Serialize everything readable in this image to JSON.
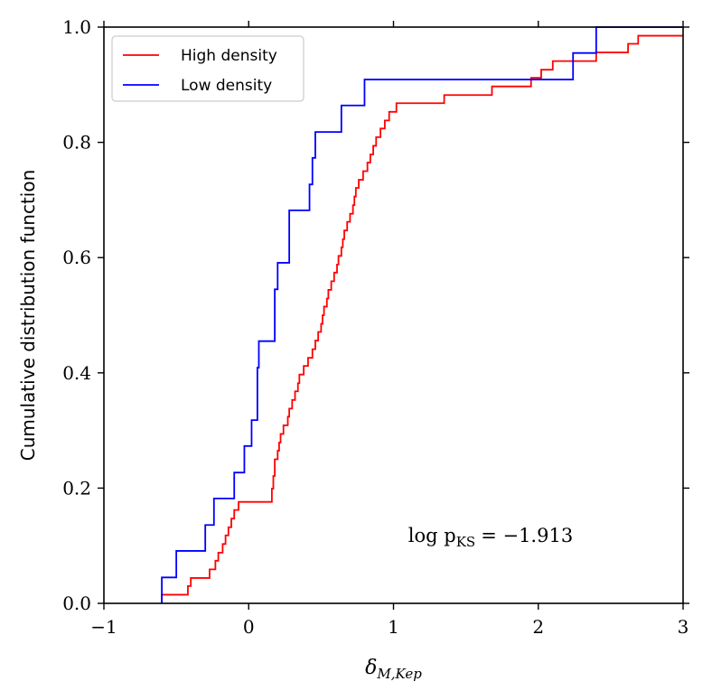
{
  "chart_data": {
    "type": "line",
    "subtype": "step-cdf",
    "xlabel": "δ",
    "xlabel_subscript": "M,Kep",
    "ylabel": "Cumulative distribution function",
    "xlim": [
      -1,
      3
    ],
    "ylim": [
      0,
      1
    ],
    "xticks": [
      -1,
      0,
      1,
      2,
      3
    ],
    "xtick_labels": [
      "−1",
      "0",
      "1",
      "2",
      "3"
    ],
    "yticks": [
      0.0,
      0.2,
      0.4,
      0.6,
      0.8,
      1.0
    ],
    "ytick_labels": [
      "0.0",
      "0.2",
      "0.4",
      "0.6",
      "0.8",
      "1.0"
    ],
    "legend_position": "top-left",
    "annotation": {
      "text": "log p",
      "subscript": "KS",
      "value": "= −1.913"
    },
    "series": [
      {
        "name": "High density",
        "color": "#ff0000",
        "x": [
          -0.6,
          -0.42,
          -0.4,
          -0.27,
          -0.23,
          -0.21,
          -0.18,
          -0.16,
          -0.14,
          -0.12,
          -0.1,
          -0.07,
          -0.05,
          -0.03,
          -0.01,
          0.02,
          0.06,
          0.09,
          0.1,
          0.12,
          0.14,
          0.16,
          0.17,
          0.18,
          0.2,
          0.21,
          0.22,
          0.24,
          0.27,
          0.28,
          0.3,
          0.32,
          0.34,
          0.35,
          0.38,
          0.41,
          0.44,
          0.46,
          0.48,
          0.5,
          0.51,
          0.52,
          0.54,
          0.55,
          0.57,
          0.59,
          0.61,
          0.62,
          0.64,
          0.65,
          0.66,
          0.68,
          0.7,
          0.72,
          0.73,
          0.74,
          0.76,
          0.79,
          0.82,
          0.84,
          0.86,
          0.88,
          0.91,
          0.94,
          0.97,
          1.02,
          1.06,
          1.09,
          1.12,
          1.16,
          1.2,
          1.25,
          1.35,
          1.45,
          1.55,
          1.6,
          1.68,
          1.82,
          1.95,
          2.02,
          2.05,
          2.1,
          2.24,
          2.4,
          2.47,
          2.53,
          2.56,
          2.62,
          2.69,
          2.72,
          2.74,
          2.77,
          2.8
        ],
        "y": [
          0.015,
          0.03,
          0.044,
          0.059,
          0.074,
          0.088,
          0.103,
          0.118,
          0.132,
          0.147,
          0.162,
          0.176,
          0.176,
          0.176,
          0.176,
          0.176,
          0.176,
          0.176,
          0.176,
          0.176,
          0.176,
          0.199,
          0.221,
          0.25,
          0.265,
          0.279,
          0.294,
          0.309,
          0.324,
          0.338,
          0.353,
          0.368,
          0.382,
          0.397,
          0.412,
          0.426,
          0.441,
          0.456,
          0.471,
          0.485,
          0.5,
          0.515,
          0.529,
          0.544,
          0.559,
          0.574,
          0.588,
          0.603,
          0.618,
          0.632,
          0.647,
          0.662,
          0.676,
          0.691,
          0.706,
          0.721,
          0.735,
          0.75,
          0.765,
          0.779,
          0.794,
          0.809,
          0.824,
          0.838,
          0.853,
          0.868,
          0.868,
          0.868,
          0.868,
          0.868,
          0.868,
          0.868,
          0.882,
          0.882,
          0.882,
          0.882,
          0.897,
          0.897,
          0.912,
          0.926,
          0.926,
          0.941,
          0.941,
          0.956,
          0.956,
          0.956,
          0.956,
          0.971,
          0.985,
          0.985,
          0.985,
          0.985,
          0.985
        ]
      },
      {
        "name": "Low density",
        "color": "#0000ff",
        "x": [
          -0.6,
          -0.5,
          -0.3,
          -0.24,
          -0.1,
          -0.03,
          0.02,
          0.06,
          0.07,
          0.18,
          0.2,
          0.28,
          0.42,
          0.44,
          0.46,
          0.64,
          0.8,
          2.24,
          2.4
        ],
        "y": [
          0.045,
          0.091,
          0.136,
          0.182,
          0.227,
          0.273,
          0.318,
          0.409,
          0.455,
          0.545,
          0.591,
          0.682,
          0.727,
          0.773,
          0.818,
          0.864,
          0.909,
          0.955,
          1.0
        ]
      }
    ]
  }
}
